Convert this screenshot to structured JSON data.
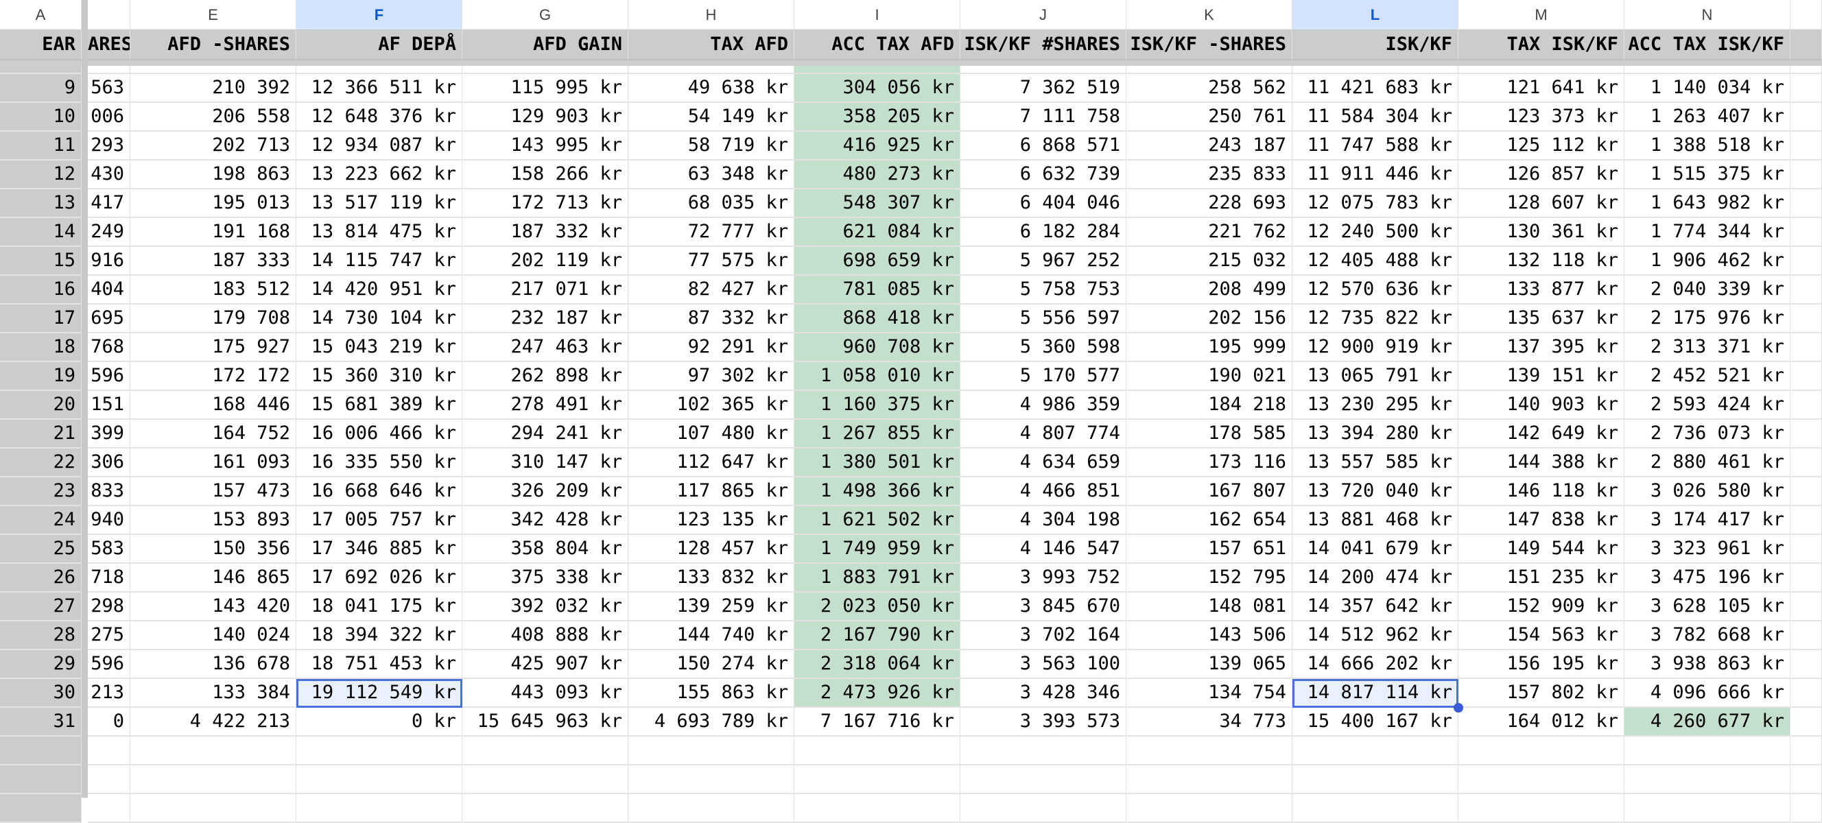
{
  "column_letters": [
    "A",
    "",
    "E",
    "F",
    "G",
    "H",
    "I",
    "J",
    "K",
    "L",
    "M",
    "N",
    ""
  ],
  "selected_columns": [
    "F",
    "L"
  ],
  "header_row": [
    "EAR",
    "ARES",
    "AFD -SHARES",
    "AF DEPÅ",
    "AFD GAIN",
    "TAX AFD",
    "ACC TAX AFD",
    "ISK/KF #SHARES",
    "ISK/KF -SHARES",
    "ISK/KF",
    "TAX ISK/KF",
    "ACC TAX ISK/KF",
    ""
  ],
  "colors": {
    "header_bg": "#cccccc",
    "highlight_green": "#c4e0cc",
    "selection_blue": "#4a6fd8",
    "selected_col_header": "#d3e3fd"
  },
  "rows": [
    [
      "9",
      "563",
      "210 392",
      "12 366 511 kr",
      "115 995 kr",
      "49 638 kr",
      "304 056 kr",
      "7 362 519",
      "258 562",
      "11 421 683 kr",
      "121 641 kr",
      "1 140 034 kr"
    ],
    [
      "10",
      "006",
      "206 558",
      "12 648 376 kr",
      "129 903 kr",
      "54 149 kr",
      "358 205 kr",
      "7 111 758",
      "250 761",
      "11 584 304 kr",
      "123 373 kr",
      "1 263 407 kr"
    ],
    [
      "11",
      "293",
      "202 713",
      "12 934 087 kr",
      "143 995 kr",
      "58 719 kr",
      "416 925 kr",
      "6 868 571",
      "243 187",
      "11 747 588 kr",
      "125 112 kr",
      "1 388 518 kr"
    ],
    [
      "12",
      "430",
      "198 863",
      "13 223 662 kr",
      "158 266 kr",
      "63 348 kr",
      "480 273 kr",
      "6 632 739",
      "235 833",
      "11 911 446 kr",
      "126 857 kr",
      "1 515 375 kr"
    ],
    [
      "13",
      "417",
      "195 013",
      "13 517 119 kr",
      "172 713 kr",
      "68 035 kr",
      "548 307 kr",
      "6 404 046",
      "228 693",
      "12 075 783 kr",
      "128 607 kr",
      "1 643 982 kr"
    ],
    [
      "14",
      "249",
      "191 168",
      "13 814 475 kr",
      "187 332 kr",
      "72 777 kr",
      "621 084 kr",
      "6 182 284",
      "221 762",
      "12 240 500 kr",
      "130 361 kr",
      "1 774 344 kr"
    ],
    [
      "15",
      "916",
      "187 333",
      "14 115 747 kr",
      "202 119 kr",
      "77 575 kr",
      "698 659 kr",
      "5 967 252",
      "215 032",
      "12 405 488 kr",
      "132 118 kr",
      "1 906 462 kr"
    ],
    [
      "16",
      "404",
      "183 512",
      "14 420 951 kr",
      "217 071 kr",
      "82 427 kr",
      "781 085 kr",
      "5 758 753",
      "208 499",
      "12 570 636 kr",
      "133 877 kr",
      "2 040 339 kr"
    ],
    [
      "17",
      "695",
      "179 708",
      "14 730 104 kr",
      "232 187 kr",
      "87 332 kr",
      "868 418 kr",
      "5 556 597",
      "202 156",
      "12 735 822 kr",
      "135 637 kr",
      "2 175 976 kr"
    ],
    [
      "18",
      "768",
      "175 927",
      "15 043 219 kr",
      "247 463 kr",
      "92 291 kr",
      "960 708 kr",
      "5 360 598",
      "195 999",
      "12 900 919 kr",
      "137 395 kr",
      "2 313 371 kr"
    ],
    [
      "19",
      "596",
      "172 172",
      "15 360 310 kr",
      "262 898 kr",
      "97 302 kr",
      "1 058 010 kr",
      "5 170 577",
      "190 021",
      "13 065 791 kr",
      "139 151 kr",
      "2 452 521 kr"
    ],
    [
      "20",
      "151",
      "168 446",
      "15 681 389 kr",
      "278 491 kr",
      "102 365 kr",
      "1 160 375 kr",
      "4 986 359",
      "184 218",
      "13 230 295 kr",
      "140 903 kr",
      "2 593 424 kr"
    ],
    [
      "21",
      "399",
      "164 752",
      "16 006 466 kr",
      "294 241 kr",
      "107 480 kr",
      "1 267 855 kr",
      "4 807 774",
      "178 585",
      "13 394 280 kr",
      "142 649 kr",
      "2 736 073 kr"
    ],
    [
      "22",
      "306",
      "161 093",
      "16 335 550 kr",
      "310 147 kr",
      "112 647 kr",
      "1 380 501 kr",
      "4 634 659",
      "173 116",
      "13 557 585 kr",
      "144 388 kr",
      "2 880 461 kr"
    ],
    [
      "23",
      "833",
      "157 473",
      "16 668 646 kr",
      "326 209 kr",
      "117 865 kr",
      "1 498 366 kr",
      "4 466 851",
      "167 807",
      "13 720 040 kr",
      "146 118 kr",
      "3 026 580 kr"
    ],
    [
      "24",
      "940",
      "153 893",
      "17 005 757 kr",
      "342 428 kr",
      "123 135 kr",
      "1 621 502 kr",
      "4 304 198",
      "162 654",
      "13 881 468 kr",
      "147 838 kr",
      "3 174 417 kr"
    ],
    [
      "25",
      "583",
      "150 356",
      "17 346 885 kr",
      "358 804 kr",
      "128 457 kr",
      "1 749 959 kr",
      "4 146 547",
      "157 651",
      "14 041 679 kr",
      "149 544 kr",
      "3 323 961 kr"
    ],
    [
      "26",
      "718",
      "146 865",
      "17 692 026 kr",
      "375 338 kr",
      "133 832 kr",
      "1 883 791 kr",
      "3 993 752",
      "152 795",
      "14 200 474 kr",
      "151 235 kr",
      "3 475 196 kr"
    ],
    [
      "27",
      "298",
      "143 420",
      "18 041 175 kr",
      "392 032 kr",
      "139 259 kr",
      "2 023 050 kr",
      "3 845 670",
      "148 081",
      "14 357 642 kr",
      "152 909 kr",
      "3 628 105 kr"
    ],
    [
      "28",
      "275",
      "140 024",
      "18 394 322 kr",
      "408 888 kr",
      "144 740 kr",
      "2 167 790 kr",
      "3 702 164",
      "143 506",
      "14 512 962 kr",
      "154 563 kr",
      "3 782 668 kr"
    ],
    [
      "29",
      "596",
      "136 678",
      "18 751 453 kr",
      "425 907 kr",
      "150 274 kr",
      "2 318 064 kr",
      "3 563 100",
      "139 065",
      "14 666 202 kr",
      "156 195 kr",
      "3 938 863 kr"
    ],
    [
      "30",
      "213",
      "133 384",
      "19 112 549 kr",
      "443 093 kr",
      "155 863 kr",
      "2 473 926 kr",
      "3 428 346",
      "134 754",
      "14 817 114 kr",
      "157 802 kr",
      "4 096 666 kr"
    ],
    [
      "31",
      "0",
      "4 422 213",
      "0 kr",
      "15 645 963 kr",
      "4 693 789 kr",
      "7 167 716 kr",
      "3 393 573",
      "34 773",
      "15 400 167 kr",
      "164 012 kr",
      "4 260 677 kr"
    ]
  ]
}
